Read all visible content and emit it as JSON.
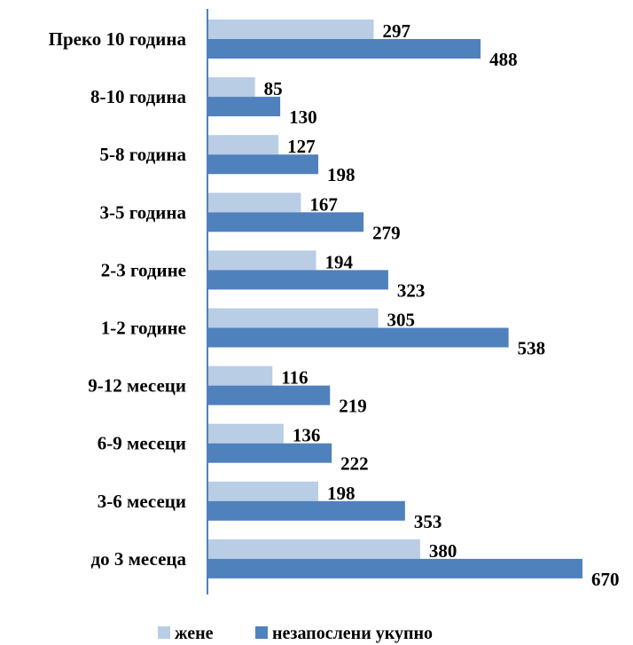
{
  "chart_data": {
    "type": "bar",
    "orientation": "horizontal",
    "categories": [
      "Преко 10 година",
      "8-10 година",
      "5-8 година",
      "3-5 година",
      "2-3 године",
      "1-2 године",
      "9-12 месеци",
      "6-9 месеци",
      "3-6 месеци",
      "до 3 месеца"
    ],
    "series": [
      {
        "name": "жене",
        "color": "#b9cde5",
        "values": [
          297,
          85,
          127,
          167,
          194,
          305,
          116,
          136,
          198,
          380
        ]
      },
      {
        "name": "незапослени укупно",
        "color": "#4f81bd",
        "values": [
          488,
          130,
          198,
          279,
          323,
          538,
          219,
          222,
          353,
          670
        ]
      }
    ],
    "title": "",
    "xlabel": "",
    "ylabel": "",
    "xlim": [
      0,
      700
    ],
    "grid": false,
    "data_labels": true,
    "legend_position": "bottom-center",
    "axis_color": "#4f81bd"
  }
}
